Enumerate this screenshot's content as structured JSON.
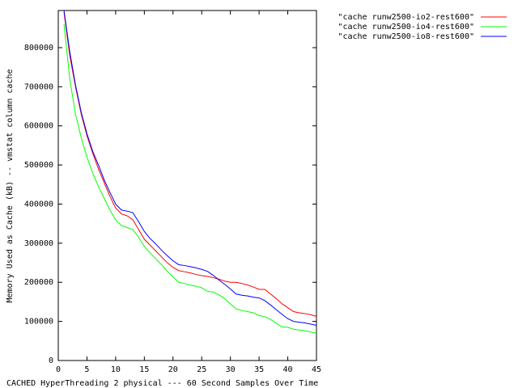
{
  "chart_data": {
    "type": "line",
    "xlabel": "CACHED HyperThreading 2 physical --- 60 Second Samples Over Time",
    "ylabel": "Memory Used as Cache (kB) -- vmstat column cache",
    "x": [
      1,
      2,
      3,
      4,
      5,
      6,
      7,
      8,
      9,
      10,
      11,
      12,
      13,
      14,
      15,
      16,
      17,
      18,
      19,
      20,
      21,
      22,
      23,
      24,
      25,
      26,
      27,
      28,
      29,
      30,
      31,
      32,
      33,
      34,
      35,
      36,
      37,
      38,
      39,
      40,
      41,
      42,
      43,
      44,
      45
    ],
    "series": [
      {
        "name": "\"cache runw2500-io2-rest600\"",
        "color": "#ff0000",
        "values": [
          890000,
          780000,
          700000,
          630000,
          575000,
          530000,
          490000,
          455000,
          420000,
          390000,
          375000,
          370000,
          360000,
          335000,
          310000,
          295000,
          280000,
          265000,
          250000,
          238000,
          230000,
          227000,
          224000,
          220000,
          217000,
          215000,
          212000,
          208000,
          203000,
          200000,
          200000,
          197000,
          193000,
          188000,
          182000,
          182000,
          170000,
          158000,
          145000,
          135000,
          125000,
          122000,
          120000,
          117000,
          113000
        ]
      },
      {
        "name": "\"cache runw2500-io4-rest600\"",
        "color": "#00ff00",
        "values": [
          860000,
          720000,
          630000,
          570000,
          520000,
          480000,
          445000,
          415000,
          385000,
          360000,
          345000,
          340000,
          335000,
          315000,
          292000,
          275000,
          260000,
          245000,
          228000,
          214000,
          200000,
          197000,
          193000,
          190000,
          186000,
          177000,
          175000,
          168000,
          158000,
          145000,
          132000,
          128000,
          125000,
          122000,
          115000,
          112000,
          105000,
          95000,
          86000,
          85000,
          80000,
          78000,
          76000,
          73000,
          70000
        ]
      },
      {
        "name": "\"cache runw2500-io8-rest600\"",
        "color": "#0000ff",
        "values": [
          895000,
          790000,
          705000,
          635000,
          580000,
          535000,
          500000,
          462000,
          430000,
          400000,
          385000,
          382000,
          378000,
          355000,
          330000,
          312000,
          298000,
          282000,
          268000,
          255000,
          245000,
          243000,
          240000,
          237000,
          233000,
          228000,
          218000,
          206000,
          195000,
          183000,
          170000,
          167000,
          165000,
          162000,
          160000,
          153000,
          142000,
          130000,
          118000,
          107000,
          100000,
          98000,
          96000,
          93000,
          90000
        ]
      }
    ],
    "xlim": [
      0,
      45
    ],
    "xticks": [
      0,
      5,
      10,
      15,
      20,
      25,
      30,
      35,
      40,
      45
    ],
    "ylim": [
      0,
      895000
    ],
    "yticks": [
      0,
      100000,
      200000,
      300000,
      400000,
      500000,
      600000,
      700000,
      800000
    ],
    "legend": "top-right"
  }
}
